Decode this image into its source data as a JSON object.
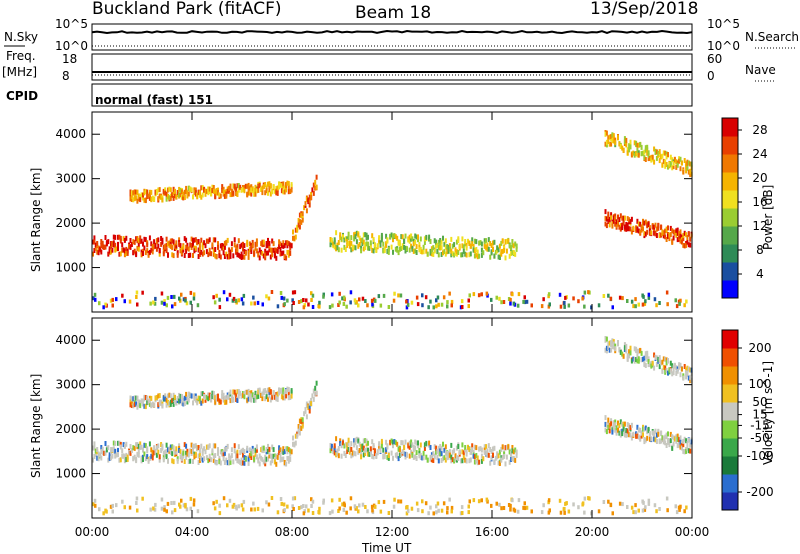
{
  "header": {
    "station": "Buckland Park (fitACF)",
    "beam": "Beam 18",
    "date": "13/Sep/2018"
  },
  "summary": {
    "nsky_label": "N.Sky",
    "nsky_ticks": [
      "10^5",
      "10^0"
    ],
    "nsearch_label": "N.Search",
    "nsearch_ticks": [
      "10^5",
      "10^0"
    ],
    "freq_label": "Freq.",
    "freq_unit": "[MHz]",
    "freq_ticks": [
      "18",
      "8"
    ],
    "nave_label": "Nave",
    "nave_ticks": [
      "60",
      "0"
    ],
    "cpid_label": "CPID",
    "cpid_text": "normal (fast) 151"
  },
  "colors": {
    "power_scale": [
      "#0000ff",
      "#1a4fa0",
      "#2e8b57",
      "#55a84a",
      "#9acd32",
      "#f0e020",
      "#f5b400",
      "#f07800",
      "#e84000",
      "#d80000"
    ],
    "velocity_scale": [
      "#2030b0",
      "#2a6ed0",
      "#1a7a3a",
      "#3aa84a",
      "#7fd040",
      "#c8c8c0",
      "#f0c020",
      "#f09000",
      "#f05000",
      "#e00000"
    ]
  },
  "chart_data": [
    {
      "type": "heatmap",
      "name": "power",
      "xlabel": "",
      "ylabel": "Slant Range [km]",
      "x_ticks": [
        "00:00",
        "04:00",
        "08:00",
        "12:00",
        "16:00",
        "20:00",
        "00:00"
      ],
      "y_ticks": [
        1000,
        2000,
        3000,
        4000
      ],
      "ylim": [
        0,
        4500
      ],
      "xlim_hours": [
        0,
        24
      ],
      "colorbar_label": "Power [dB]",
      "colorbar_ticks": [
        4,
        8,
        12,
        16,
        20,
        24,
        28
      ],
      "colorbar_range": [
        0,
        30
      ],
      "echo_bands": [
        {
          "from": 0,
          "to": 8,
          "r1_start": 1500,
          "r1_end": 1400,
          "width": 250,
          "intensity": 0.9
        },
        {
          "from": 1.5,
          "to": 8,
          "r1_start": 2600,
          "r1_end": 2800,
          "width": 150,
          "intensity": 0.7
        },
        {
          "from": 8,
          "to": 9,
          "r1_start": 1700,
          "r1_end": 3000,
          "width": 200,
          "intensity": 0.8
        },
        {
          "from": 9.5,
          "to": 17,
          "r1_start": 1600,
          "r1_end": 1400,
          "width": 250,
          "intensity": 0.5
        },
        {
          "from": 20.5,
          "to": 24,
          "r1_start": 2100,
          "r1_end": 1600,
          "width": 200,
          "intensity": 0.9
        },
        {
          "from": 20.5,
          "to": 24,
          "r1_start": 3900,
          "r1_end": 3200,
          "width": 200,
          "intensity": 0.6
        }
      ]
    },
    {
      "type": "heatmap",
      "name": "velocity",
      "xlabel": "Time UT",
      "ylabel": "Slant Range [km]",
      "x_ticks": [
        "00:00",
        "04:00",
        "08:00",
        "12:00",
        "16:00",
        "20:00",
        "00:00"
      ],
      "y_ticks": [
        1000,
        2000,
        3000,
        4000
      ],
      "ylim": [
        0,
        4500
      ],
      "xlim_hours": [
        0,
        24
      ],
      "colorbar_label": "Velocity [m s^-1]",
      "colorbar_ticks": [
        -200,
        -100,
        -50,
        -15,
        15,
        50,
        100,
        200
      ],
      "colorbar_range": [
        -250,
        250
      ]
    }
  ]
}
